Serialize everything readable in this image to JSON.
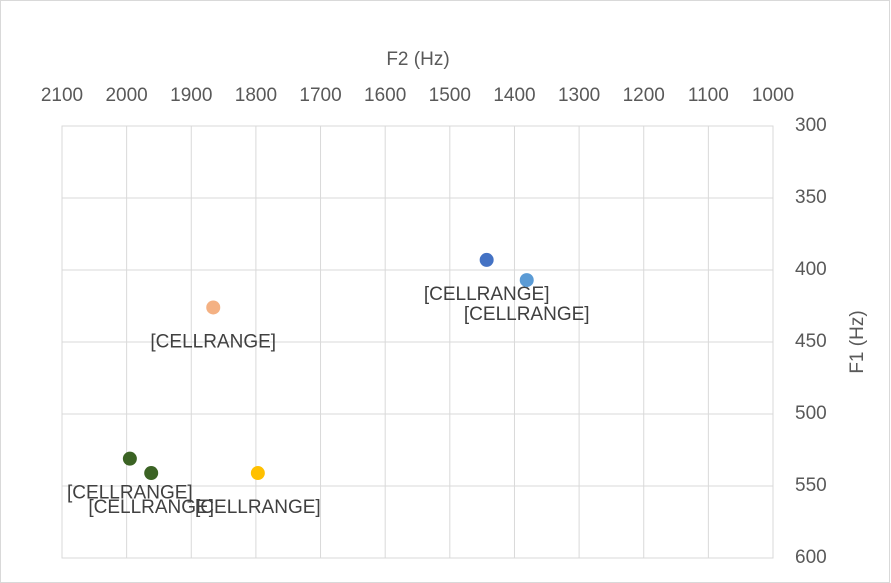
{
  "chart_data": {
    "type": "scatter",
    "x_axis_title": "F2 (Hz)",
    "y_axis_title": "F1 (Hz)",
    "x": [
      1443,
      1381,
      1866,
      1995,
      1962,
      1797
    ],
    "values": [
      393,
      407,
      426,
      531,
      541,
      541
    ],
    "colors": [
      "#4472c4",
      "#5b9bd5",
      "#f4b183",
      "#3b6324",
      "#3b6324",
      "#ffc000"
    ],
    "value_labels": [
      "[CELLRANGE]",
      "[CELLRANGE]",
      "[CELLRANGE]",
      "[CELLRANGE]",
      "[CELLRANGE]",
      "[CELLRANGE]"
    ],
    "xlim": [
      1000,
      2100
    ],
    "x_reversed": true,
    "xticks": [
      2100,
      2000,
      1900,
      1800,
      1700,
      1600,
      1500,
      1400,
      1300,
      1200,
      1100,
      1000
    ],
    "ylim": [
      300,
      600
    ],
    "y_reversed": true,
    "yticks": [
      300,
      350,
      400,
      450,
      500,
      550,
      600
    ],
    "grid": true
  }
}
